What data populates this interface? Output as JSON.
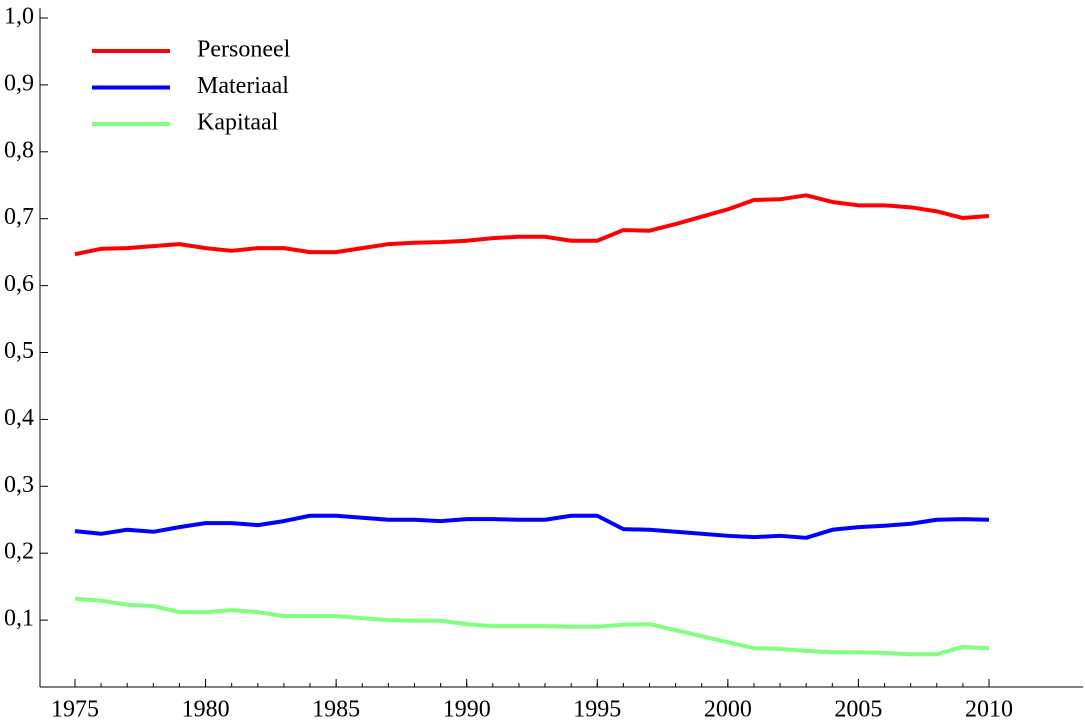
{
  "chart_data": {
    "type": "line",
    "x": [
      1975,
      1976,
      1977,
      1978,
      1979,
      1980,
      1981,
      1982,
      1983,
      1984,
      1985,
      1986,
      1987,
      1988,
      1989,
      1990,
      1991,
      1992,
      1993,
      1994,
      1995,
      1996,
      1997,
      1998,
      1999,
      2000,
      2001,
      2002,
      2003,
      2004,
      2005,
      2006,
      2007,
      2008,
      2009,
      2010
    ],
    "series": [
      {
        "name": "Personeel",
        "color": "#ff0000",
        "values": [
          0.647,
          0.655,
          0.656,
          0.659,
          0.662,
          0.656,
          0.652,
          0.656,
          0.656,
          0.65,
          0.65,
          0.656,
          0.662,
          0.664,
          0.665,
          0.667,
          0.671,
          0.673,
          0.673,
          0.667,
          0.667,
          0.683,
          0.682,
          0.692,
          0.703,
          0.714,
          0.728,
          0.729,
          0.735,
          0.725,
          0.72,
          0.72,
          0.717,
          0.711,
          0.701,
          0.704
        ]
      },
      {
        "name": "Materiaal",
        "color": "#0000ff",
        "values": [
          0.233,
          0.229,
          0.235,
          0.232,
          0.239,
          0.245,
          0.245,
          0.242,
          0.248,
          0.256,
          0.256,
          0.253,
          0.25,
          0.25,
          0.248,
          0.251,
          0.251,
          0.25,
          0.25,
          0.256,
          0.256,
          0.236,
          0.235,
          0.232,
          0.229,
          0.226,
          0.224,
          0.226,
          0.223,
          0.235,
          0.239,
          0.241,
          0.244,
          0.25,
          0.251,
          0.25
        ]
      },
      {
        "name": "Kapitaal",
        "color": "#80ff80",
        "values": [
          0.132,
          0.129,
          0.123,
          0.121,
          0.112,
          0.112,
          0.115,
          0.112,
          0.106,
          0.106,
          0.106,
          0.103,
          0.1,
          0.099,
          0.099,
          0.094,
          0.091,
          0.091,
          0.091,
          0.09,
          0.09,
          0.093,
          0.094,
          0.085,
          0.076,
          0.067,
          0.058,
          0.057,
          0.054,
          0.052,
          0.052,
          0.051,
          0.049,
          0.049,
          0.06,
          0.058
        ]
      }
    ],
    "xlim": [
      1973.66,
      2013.6
    ],
    "xticks": [
      1975,
      1980,
      1985,
      1990,
      1995,
      2000,
      2005,
      2010
    ],
    "ylim": [
      0,
      1
    ],
    "yticks": [
      {
        "value": 0.1,
        "label": "0,1"
      },
      {
        "value": 0.2,
        "label": "0,2"
      },
      {
        "value": 0.3,
        "label": "0,3"
      },
      {
        "value": 0.4,
        "label": "0,4"
      },
      {
        "value": 0.5,
        "label": "0,5"
      },
      {
        "value": 0.6,
        "label": "0,6"
      },
      {
        "value": 0.7,
        "label": "0,7"
      },
      {
        "value": 0.8,
        "label": "0,8"
      },
      {
        "value": 0.9,
        "label": "0,9"
      },
      {
        "value": 1.0,
        "label": "1,0"
      }
    ],
    "legend": "upper-left"
  }
}
